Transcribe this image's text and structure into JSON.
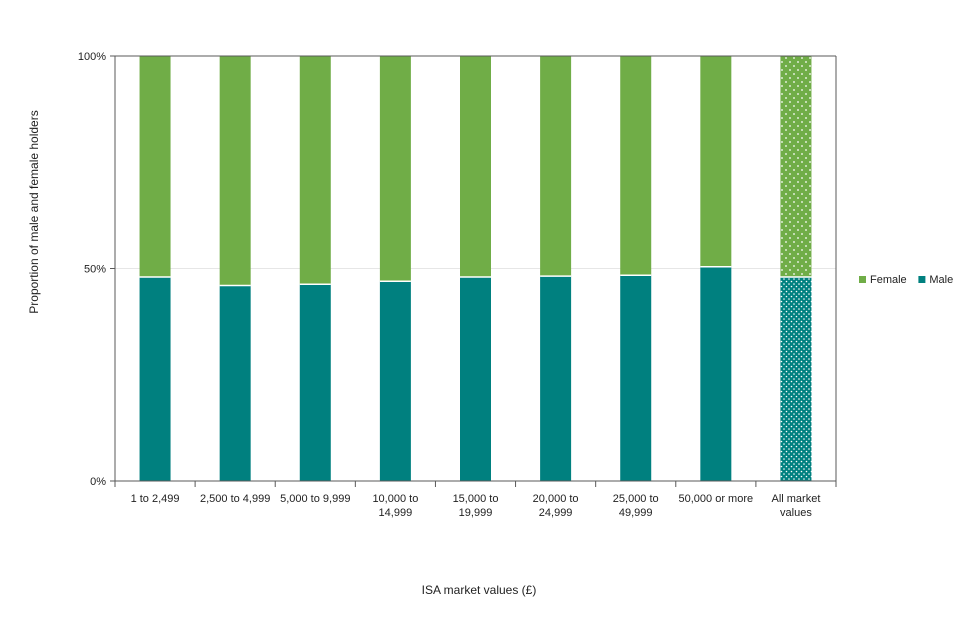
{
  "chart_data": {
    "type": "bar",
    "stacked": true,
    "title": "",
    "xlabel": "ISA market values (£)",
    "ylabel": "Proportion of male and female holders",
    "ylim": [
      0,
      100
    ],
    "yticks": [
      "0%",
      "50%",
      "100%"
    ],
    "ytick_values": [
      0,
      50,
      100
    ],
    "categories": [
      [
        "1 to 2,499"
      ],
      [
        "2,500 to 4,999"
      ],
      [
        "5,000 to 9,999"
      ],
      [
        "10,000 to",
        "14,999"
      ],
      [
        "15,000 to",
        "19,999"
      ],
      [
        "20,000 to",
        "24,999"
      ],
      [
        "25,000 to",
        "49,999"
      ],
      [
        "50,000 or more"
      ],
      [
        "All market",
        "values"
      ]
    ],
    "series": [
      {
        "name": "Male",
        "color": "#00807f",
        "values": [
          48,
          46,
          46.3,
          47,
          48,
          48.2,
          48.4,
          50.4,
          48
        ]
      },
      {
        "name": "Female",
        "color": "#70ad47",
        "values": [
          52,
          54,
          53.7,
          53,
          52,
          51.8,
          51.6,
          49.6,
          52
        ]
      }
    ],
    "patterned_category_index": 8,
    "legend": [
      {
        "label": "Female",
        "color": "#70ad47"
      },
      {
        "label": "Male",
        "color": "#00807f"
      }
    ],
    "legend_position": "right",
    "grid": true
  }
}
